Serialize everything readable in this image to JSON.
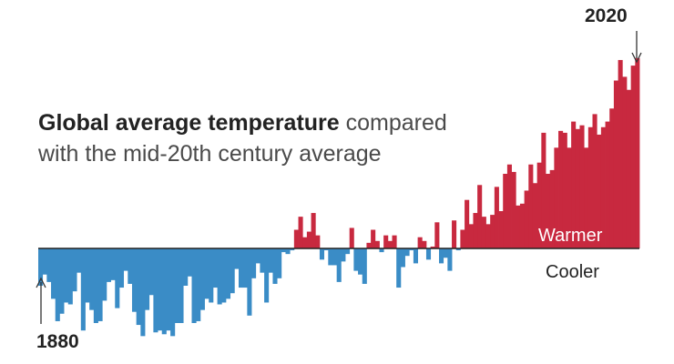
{
  "title": {
    "bold": "Global average temperature",
    "rest_line1": " compared",
    "rest_line2": "with the mid-20th century average"
  },
  "labels": {
    "start_year": "1880",
    "end_year": "2020",
    "warmer": "Warmer",
    "cooler": "Cooler"
  },
  "colors": {
    "warm": "#c8293f",
    "cool": "#3a8cc6",
    "baseline": "#222222",
    "warmer_text": "#ffffff",
    "cooler_text": "#222222"
  },
  "chart_data": {
    "type": "bar",
    "x_start": 1880,
    "x_end": 2020,
    "values": [
      -0.2,
      -0.14,
      -0.18,
      -0.27,
      -0.39,
      -0.35,
      -0.29,
      -0.3,
      -0.23,
      -0.13,
      -0.44,
      -0.29,
      -0.33,
      -0.4,
      -0.39,
      -0.28,
      -0.18,
      -0.17,
      -0.32,
      -0.21,
      -0.12,
      -0.19,
      -0.34,
      -0.41,
      -0.47,
      -0.33,
      -0.25,
      -0.45,
      -0.44,
      -0.46,
      -0.44,
      -0.47,
      -0.4,
      -0.4,
      -0.2,
      -0.15,
      -0.4,
      -0.39,
      -0.33,
      -0.27,
      -0.29,
      -0.21,
      -0.3,
      -0.29,
      -0.27,
      -0.24,
      -0.11,
      -0.21,
      -0.21,
      -0.36,
      -0.16,
      -0.08,
      -0.13,
      -0.29,
      -0.13,
      -0.19,
      -0.16,
      -0.02,
      -0.03,
      -0.01,
      0.1,
      0.17,
      0.06,
      0.09,
      0.19,
      0.07,
      -0.06,
      -0.01,
      -0.09,
      -0.09,
      -0.18,
      -0.07,
      -0.03,
      0.11,
      -0.12,
      -0.14,
      -0.19,
      0.03,
      0.1,
      0.04,
      -0.02,
      0.07,
      0.04,
      0.07,
      -0.21,
      -0.1,
      -0.04,
      -0.01,
      -0.08,
      0.06,
      0.04,
      -0.06,
      0.01,
      0.14,
      -0.08,
      -0.05,
      -0.12,
      0.15,
      -0.01,
      0.1,
      0.26,
      0.13,
      0.19,
      0.34,
      0.17,
      0.13,
      0.18,
      0.33,
      0.2,
      0.4,
      0.45,
      0.41,
      0.23,
      0.24,
      0.31,
      0.45,
      0.35,
      0.46,
      0.62,
      0.4,
      0.42,
      0.54,
      0.63,
      0.62,
      0.54,
      0.68,
      0.64,
      0.66,
      0.54,
      0.65,
      0.72,
      0.61,
      0.65,
      0.68,
      0.75,
      0.9,
      1.01,
      0.92,
      0.85,
      0.98,
      1.02
    ],
    "xlabel": "",
    "ylabel": "",
    "grid": false,
    "legend": "none"
  }
}
